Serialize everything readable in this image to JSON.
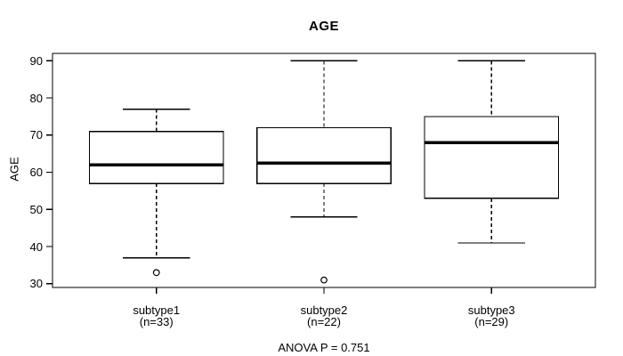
{
  "title": "AGE",
  "caption": "ANOVA P = 0.751",
  "chart_data": {
    "type": "boxplot",
    "title": "AGE",
    "xlabel": "",
    "ylabel": "AGE",
    "ylim": [
      29,
      92
    ],
    "yticks": [
      30,
      40,
      50,
      60,
      70,
      80,
      90
    ],
    "grid": false,
    "legend": "none",
    "annotation": "ANOVA P = 0.751",
    "groups": [
      {
        "label": "subtype1",
        "count_label": "(n=33)",
        "n": 33,
        "whisker_low": 37,
        "q1": 57,
        "median": 62,
        "q3": 71,
        "whisker_high": 77,
        "outliers": [
          33
        ]
      },
      {
        "label": "subtype2",
        "count_label": "(n=22)",
        "n": 22,
        "whisker_low": 48,
        "q1": 57,
        "median": 62.5,
        "q3": 72,
        "whisker_high": 90,
        "outliers": [
          31
        ]
      },
      {
        "label": "subtype3",
        "count_label": "(n=29)",
        "n": 29,
        "whisker_low": 41,
        "q1": 53,
        "median": 68,
        "q3": 75,
        "whisker_high": 90,
        "outliers": []
      }
    ],
    "colors": {
      "line": "#000000",
      "box_fill": "#ffffff",
      "background": "#ffffff"
    }
  }
}
